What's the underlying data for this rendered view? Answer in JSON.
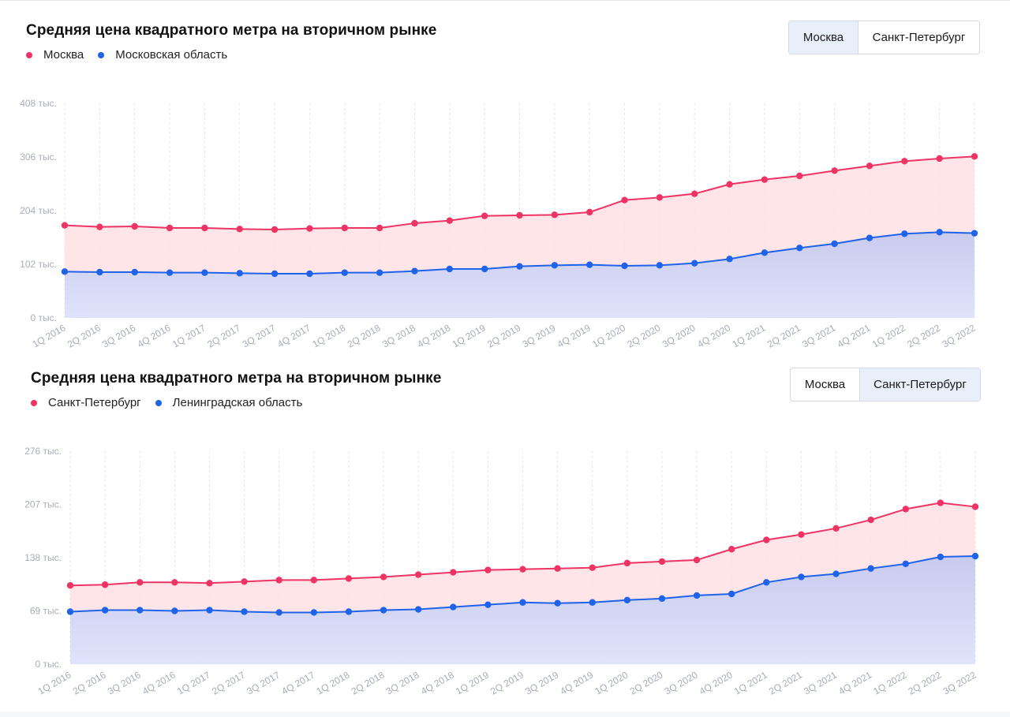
{
  "colors": {
    "primary": "#ee3465",
    "secondary": "#1f63e9",
    "fill_primary": "#ffdfe4",
    "fill_secondary": "#d4d6f3"
  },
  "panel1": {
    "title": "Средняя цена квадратного метра на вторичном рынке",
    "toggle": [
      {
        "label": "Москва",
        "active": true
      },
      {
        "label": "Санкт-Петербург",
        "active": false
      }
    ]
  },
  "panel2": {
    "title": "Средняя цена квадратного метра на вторичном рынке",
    "toggle": [
      {
        "label": "Москва",
        "active": false
      },
      {
        "label": "Санкт-Петербург",
        "active": true
      }
    ]
  },
  "chart_data": [
    {
      "type": "area",
      "title": "Средняя цена квадратного метра на вторичном рынке",
      "categories": [
        "1Q 2016",
        "2Q 2016",
        "3Q 2016",
        "4Q 2016",
        "1Q 2017",
        "2Q 2017",
        "3Q 2017",
        "4Q 2017",
        "1Q 2018",
        "2Q 2018",
        "3Q 2018",
        "4Q 2018",
        "1Q 2019",
        "2Q 2019",
        "3Q 2019",
        "4Q 2019",
        "1Q 2020",
        "2Q 2020",
        "3Q 2020",
        "4Q 2020",
        "1Q 2021",
        "2Q 2021",
        "3Q 2021",
        "4Q 2021",
        "1Q 2022",
        "2Q 2022",
        "3Q 2022"
      ],
      "yticks": [
        "0 тыс.",
        "102 тыс.",
        "204 тыс.",
        "306 тыс.",
        "408 тыс."
      ],
      "ylim": [
        0,
        408
      ],
      "legend": "top-left",
      "grid": "vertical-dashed",
      "series": [
        {
          "name": "Москва",
          "values": [
            176,
            173,
            174,
            171,
            171,
            169,
            168,
            170,
            171,
            171,
            180,
            185,
            194,
            195,
            196,
            201,
            224,
            229,
            236,
            254,
            263,
            270,
            280,
            289,
            298,
            303,
            307
          ]
        },
        {
          "name": "Московская область",
          "values": [
            88,
            87,
            87,
            86,
            86,
            85,
            84,
            84,
            86,
            86,
            89,
            93,
            93,
            98,
            100,
            101,
            99,
            100,
            104,
            112,
            124,
            133,
            141,
            152,
            160,
            163,
            161
          ]
        }
      ]
    },
    {
      "type": "area",
      "title": "Средняя цена квадратного метра на вторичном рынке",
      "categories": [
        "1Q 2016",
        "2Q 2016",
        "3Q 2016",
        "4Q 2016",
        "1Q 2017",
        "2Q 2017",
        "3Q 2017",
        "4Q 2017",
        "1Q 2018",
        "2Q 2018",
        "3Q 2018",
        "4Q 2018",
        "1Q 2019",
        "2Q 2019",
        "3Q 2019",
        "4Q 2019",
        "1Q 2020",
        "2Q 2020",
        "3Q 2020",
        "4Q 2020",
        "1Q 2021",
        "2Q 2021",
        "3Q 2021",
        "4Q 2021",
        "1Q 2022",
        "2Q 2022",
        "3Q 2022"
      ],
      "yticks": [
        "0 тыс.",
        "69 тыс.",
        "138 тыс.",
        "207 тыс.",
        "276 тыс."
      ],
      "ylim": [
        0,
        276
      ],
      "legend": "top-left",
      "grid": "vertical-dashed",
      "series": [
        {
          "name": "Санкт-Петербург",
          "values": [
            102,
            103,
            106,
            106,
            105,
            107,
            109,
            109,
            111,
            113,
            116,
            119,
            122,
            123,
            124,
            125,
            131,
            133,
            135,
            149,
            161,
            168,
            176,
            187,
            201,
            209,
            204
          ]
        },
        {
          "name": "Ленинградская область",
          "values": [
            68,
            70,
            70,
            69,
            70,
            68,
            67,
            67,
            68,
            70,
            71,
            74,
            77,
            80,
            79,
            80,
            83,
            85,
            89,
            91,
            106,
            113,
            117,
            124,
            130,
            139,
            140
          ]
        }
      ]
    }
  ]
}
